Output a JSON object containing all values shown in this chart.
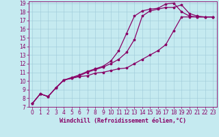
{
  "xlabel": "Windchill (Refroidissement éolien,°C)",
  "background_color": "#c5eaf0",
  "grid_color": "#9dc8d8",
  "line_color": "#880066",
  "xlim": [
    -0.5,
    23.5
  ],
  "ylim": [
    7,
    19.2
  ],
  "xticks": [
    0,
    1,
    2,
    3,
    4,
    5,
    6,
    7,
    8,
    9,
    10,
    11,
    12,
    13,
    14,
    15,
    16,
    17,
    18,
    19,
    20,
    21,
    22,
    23
  ],
  "yticks": [
    7,
    8,
    9,
    10,
    11,
    12,
    13,
    14,
    15,
    16,
    17,
    18,
    19
  ],
  "line1_x": [
    0,
    1,
    2,
    3,
    4,
    5,
    6,
    7,
    8,
    9,
    10,
    11,
    12,
    13,
    14,
    15,
    16,
    17,
    18,
    19,
    20,
    21,
    22,
    23
  ],
  "line1_y": [
    7.4,
    8.5,
    8.2,
    9.2,
    10.1,
    10.3,
    10.5,
    10.6,
    10.9,
    11.0,
    11.2,
    11.4,
    11.5,
    12.0,
    12.5,
    13.0,
    13.5,
    14.2,
    15.8,
    17.4,
    17.4,
    17.4,
    17.4,
    17.4
  ],
  "line2_x": [
    0,
    1,
    2,
    3,
    4,
    5,
    6,
    7,
    8,
    9,
    10,
    11,
    12,
    13,
    14,
    15,
    16,
    17,
    18,
    19,
    20,
    21,
    22,
    23
  ],
  "line2_y": [
    7.4,
    8.5,
    8.2,
    9.2,
    10.1,
    10.3,
    10.6,
    11.0,
    11.3,
    11.6,
    12.0,
    12.5,
    13.3,
    14.8,
    17.5,
    18.1,
    18.3,
    18.5,
    18.5,
    18.8,
    17.8,
    17.5,
    17.4,
    17.4
  ],
  "line3_x": [
    0,
    1,
    2,
    3,
    4,
    5,
    6,
    7,
    8,
    9,
    10,
    11,
    12,
    13,
    14,
    15,
    16,
    17,
    18,
    19,
    20,
    21,
    22,
    23
  ],
  "line3_y": [
    7.4,
    8.5,
    8.2,
    9.2,
    10.1,
    10.4,
    10.7,
    11.1,
    11.4,
    11.7,
    12.3,
    13.5,
    15.5,
    17.5,
    18.1,
    18.3,
    18.4,
    18.9,
    19.0,
    18.0,
    17.5,
    17.4,
    17.4,
    17.4
  ],
  "xlabel_fontsize": 6,
  "tick_fontsize": 5.5,
  "linewidth": 0.9,
  "markersize": 2.5
}
